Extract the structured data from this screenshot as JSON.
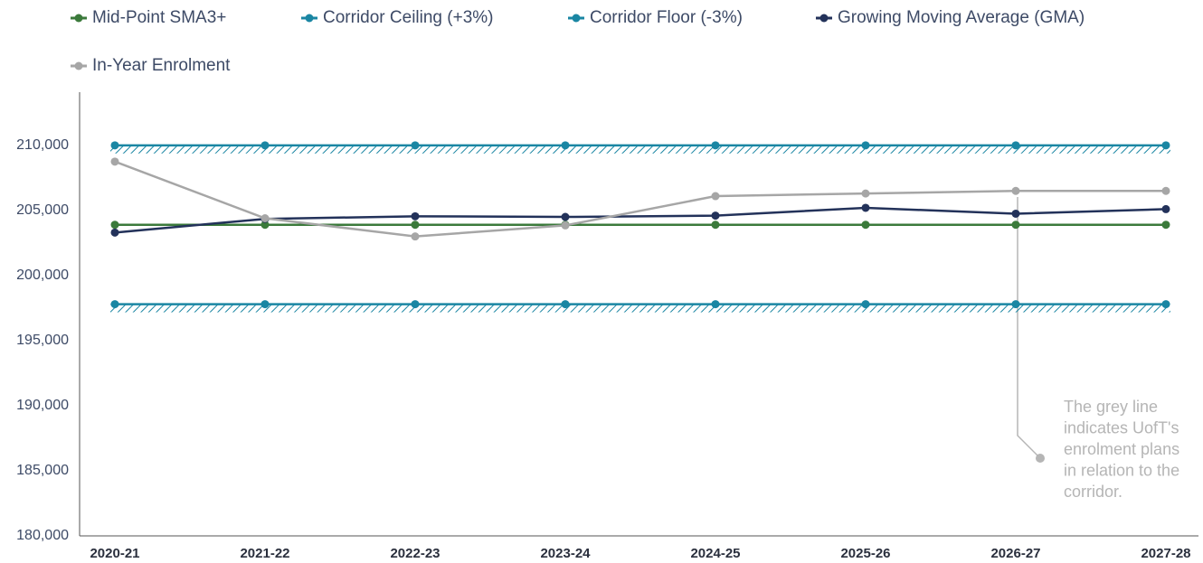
{
  "chart_data": {
    "type": "line",
    "categories": [
      "2020-21",
      "2021-22",
      "2022-23",
      "2023-24",
      "2024-25",
      "2025-26",
      "2026-27",
      "2027-28"
    ],
    "series": [
      {
        "name": "Mid-Point SMA3+",
        "color": "#3b7a3b",
        "values": [
          203900,
          203900,
          203900,
          203900,
          203900,
          203900,
          203900,
          203900
        ]
      },
      {
        "name": "Corridor Ceiling (+3%)",
        "color": "#1a86a3",
        "hatched": true,
        "values": [
          210000,
          210000,
          210000,
          210000,
          210000,
          210000,
          210000,
          210000
        ]
      },
      {
        "name": "Corridor Floor (-3%)",
        "color": "#1a86a3",
        "hatched": true,
        "values": [
          197800,
          197800,
          197800,
          197800,
          197800,
          197800,
          197800,
          197800
        ]
      },
      {
        "name": "Growing Moving Average (GMA)",
        "color": "#23325a",
        "values": [
          203300,
          204350,
          204550,
          204500,
          204600,
          205200,
          204750,
          205100
        ]
      },
      {
        "name": "In-Year Enrolment",
        "color": "#a6a6a6",
        "values": [
          208750,
          204400,
          203000,
          203850,
          206100,
          206300,
          206500,
          206500
        ]
      }
    ],
    "ylim": [
      180000,
      214500
    ],
    "yticks": [
      {
        "value": 180000,
        "label": "180,000"
      },
      {
        "value": 185000,
        "label": "185,000"
      },
      {
        "value": 190000,
        "label": "190,000"
      },
      {
        "value": 195000,
        "label": "195,000"
      },
      {
        "value": 200000,
        "label": "200,000"
      },
      {
        "value": 205000,
        "label": "205,000"
      },
      {
        "value": 210000,
        "label": "210,000"
      }
    ],
    "annotation": [
      "The grey line",
      "indicates UofT's",
      "enrolment plans",
      "in relation to the",
      "corridor."
    ]
  }
}
